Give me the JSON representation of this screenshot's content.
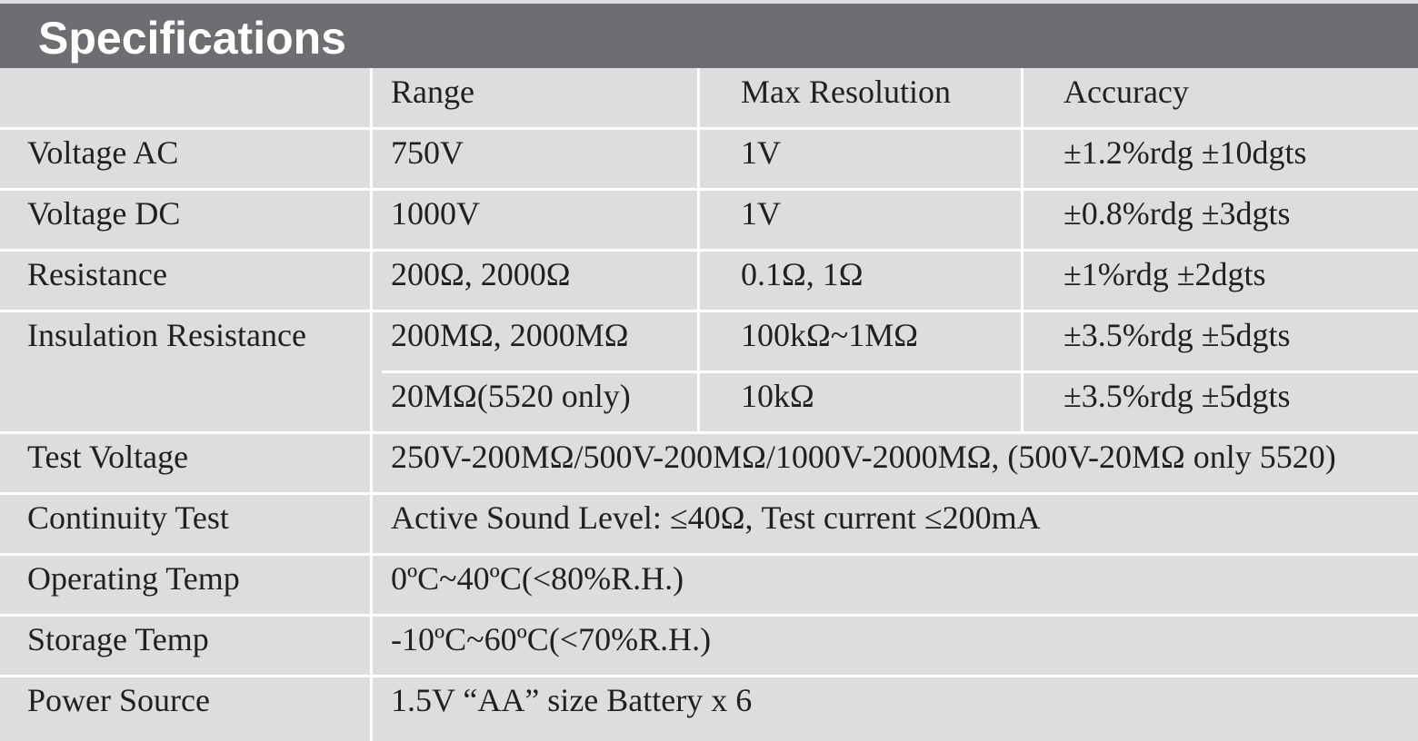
{
  "header": {
    "title": "Specifications"
  },
  "table": {
    "columns": [
      "Range",
      "Max Resolution",
      "Accuracy"
    ],
    "rows": [
      {
        "label": "Voltage AC",
        "cells": [
          "750V",
          "1V",
          "±1.2%rdg ±10dgts"
        ]
      },
      {
        "label": "Voltage DC",
        "cells": [
          "1000V",
          "1V",
          "±0.8%rdg ±3dgts"
        ]
      },
      {
        "label": "Resistance",
        "cells": [
          "200Ω, 2000Ω",
          "0.1Ω, 1Ω",
          "±1%rdg ±2dgts"
        ]
      },
      {
        "label": "Insulation Resistance",
        "cells": [
          "200MΩ, 2000MΩ",
          "100kΩ~1MΩ",
          "±3.5%rdg ±5dgts"
        ]
      },
      {
        "cells": [
          "20MΩ(5520 only)",
          "10kΩ",
          "±3.5%rdg ±5dgts"
        ]
      },
      {
        "label": "Test Voltage",
        "value": "250V-200MΩ/500V-200MΩ/1000V-2000MΩ, (500V-20MΩ only 5520)"
      },
      {
        "label": "Continuity Test",
        "value": "Active Sound Level: ≤40Ω, Test current ≤200mA"
      },
      {
        "label": "Operating Temp",
        "value": "0ºC~40ºC(<80%R.H.)"
      },
      {
        "label": "Storage Temp",
        "value": "-10ºC~60ºC(<70%R.H.)"
      },
      {
        "label": "Power Source",
        "value": "1.5V “AA” size Battery x 6"
      }
    ]
  }
}
